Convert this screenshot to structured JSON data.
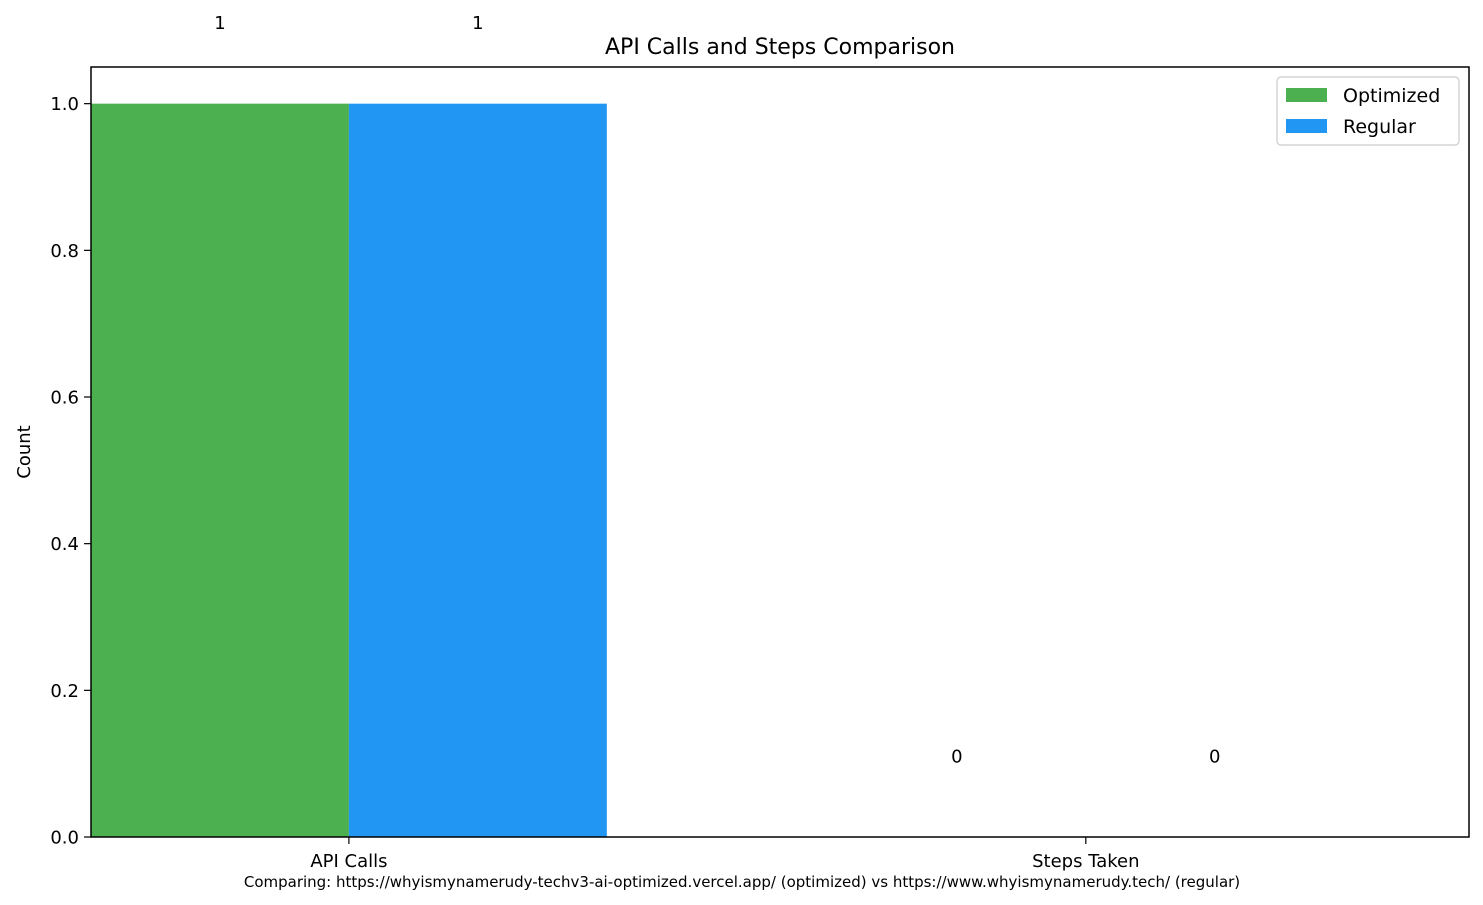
{
  "chart_data": {
    "type": "bar",
    "title": "API Calls and Steps Comparison",
    "xlabel": "",
    "ylabel": "Count",
    "ylim": [
      0,
      1.05
    ],
    "yticks": [
      "0.0",
      "0.2",
      "0.4",
      "0.6",
      "0.8",
      "1.0"
    ],
    "categories": [
      "API Calls",
      "Steps Taken"
    ],
    "series": [
      {
        "name": "Optimized",
        "values": [
          1,
          0
        ],
        "labels": [
          "1",
          "0"
        ],
        "color": "#4caf50"
      },
      {
        "name": "Regular",
        "values": [
          1,
          0
        ],
        "labels": [
          "1",
          "0"
        ],
        "color": "#2196f3"
      }
    ],
    "legend": {
      "position": "top-right"
    },
    "grid": false
  },
  "caption": "Comparing: https://whyismynamerudy-techv3-ai-optimized.vercel.app/ (optimized) vs https://www.whyismynamerudy.tech/ (regular)"
}
